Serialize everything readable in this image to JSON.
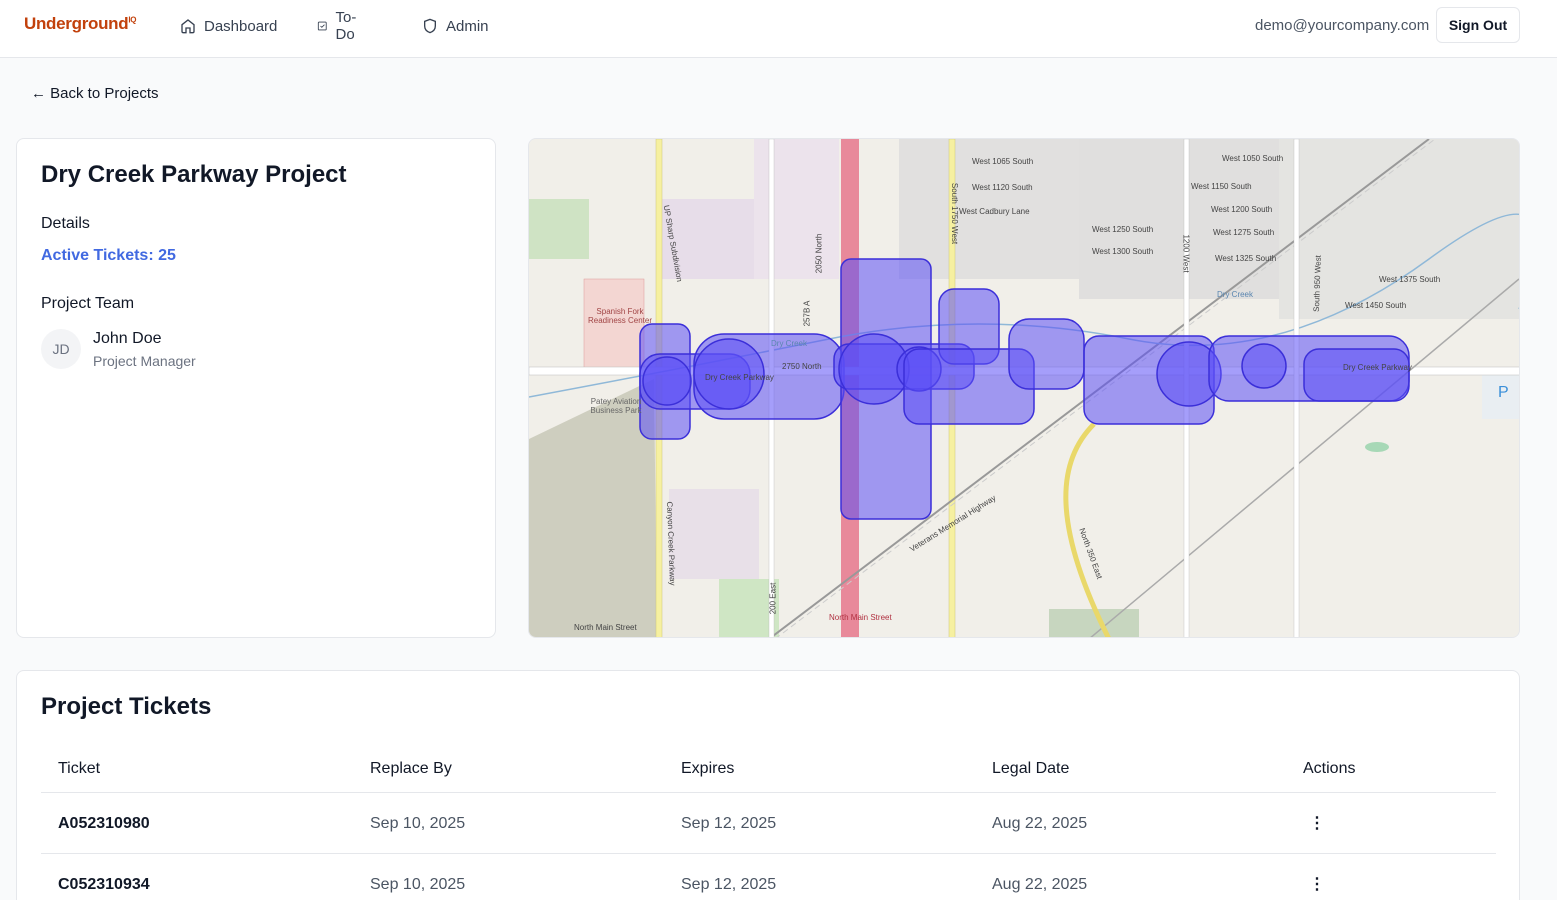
{
  "header": {
    "logo_text": "Underground",
    "logo_sup": "IQ",
    "nav": [
      {
        "label": "Dashboard",
        "icon": "home-icon"
      },
      {
        "label": "To-Do",
        "icon": "checkbox-icon"
      },
      {
        "label": "Admin",
        "icon": "shield-icon"
      }
    ],
    "user_email": "demo@yourcompany.com",
    "signout_label": "Sign Out"
  },
  "back_link": "← Back to Projects",
  "project": {
    "title": "Dry Creek Parkway Project",
    "details_label": "Details",
    "active_tickets": "Active Tickets: 25",
    "team_label": "Project Team",
    "team": [
      {
        "initials": "JD",
        "name": "John Doe",
        "role": "Project Manager"
      }
    ]
  },
  "map": {
    "labels": [
      "West 1065 South",
      "West 1120 South",
      "West Cadbury Lane",
      "West 1050 South",
      "West 1150 South",
      "West 1200 South",
      "West 1275 South",
      "West 1325 South",
      "West 1250 South",
      "West 1300 South",
      "West 1375 South",
      "West 1450 South",
      "Dry Creek Parkway",
      "Dry Creek Parkway",
      "2750 North",
      "Dry Creek",
      "Dry Creek",
      "Spanish Fork Readiness Center",
      "Patey Aviation Business Park",
      "North Main Street",
      "North Main Street",
      "Veterans Memorial Highway",
      "North 350 East",
      "UP Sharp Subdivision",
      "Canyon Creek Parkway",
      "2050 North",
      "257B A",
      "200 East",
      "1200 West",
      "South 1750 West",
      "South 950 West",
      "P"
    ],
    "colors": {
      "overlay": "#5b4ff5",
      "highway": "#e8899a"
    }
  },
  "tickets": {
    "title": "Project Tickets",
    "columns": [
      "Ticket",
      "Replace By",
      "Expires",
      "Legal Date",
      "Actions"
    ],
    "rows": [
      {
        "ticket": "A052310980",
        "replace_by": "Sep 10, 2025",
        "expires": "Sep 12, 2025",
        "legal_date": "Aug 22, 2025",
        "actions": "⋮"
      },
      {
        "ticket": "C052310934",
        "replace_by": "Sep 10, 2025",
        "expires": "Sep 12, 2025",
        "legal_date": "Aug 22, 2025",
        "actions": "⋮"
      }
    ]
  }
}
